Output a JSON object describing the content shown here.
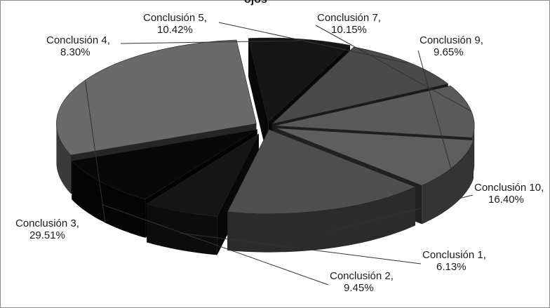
{
  "chart_data": {
    "type": "pie",
    "style": "3d-exploded",
    "title": "",
    "title_visible_fragment": "ojos",
    "slices": [
      {
        "label": "Conclusión 1,",
        "pct_label": "6.13%",
        "value": 6.13,
        "color": "#161616"
      },
      {
        "label": "Conclusión 2,",
        "pct_label": "9.45%",
        "value": 9.45,
        "color": "#080808"
      },
      {
        "label": "Conclusión 3,",
        "pct_label": "29.51%",
        "value": 29.51,
        "color": "#6a6a6a"
      },
      {
        "label": "Conclusión 4,",
        "pct_label": "8.30%",
        "value": 8.3,
        "color": "#161616"
      },
      {
        "label": "Conclusión 5,",
        "pct_label": "10.42%",
        "value": 10.42,
        "color": "#4a4a4a"
      },
      {
        "label": "Conclusión 7,",
        "pct_label": "10.15%",
        "value": 10.15,
        "color": "#5a5a5a"
      },
      {
        "label": "Conclusión 9,",
        "pct_label": "9.65%",
        "value": 9.65,
        "color": "#5e5e5e"
      },
      {
        "label": "Conclusión 10,",
        "pct_label": "16.40%",
        "value": 16.4,
        "color": "#4f4f4f"
      }
    ],
    "legend": "none",
    "label_color": "#1a1a1a",
    "border_color": "#8c8c8c"
  }
}
